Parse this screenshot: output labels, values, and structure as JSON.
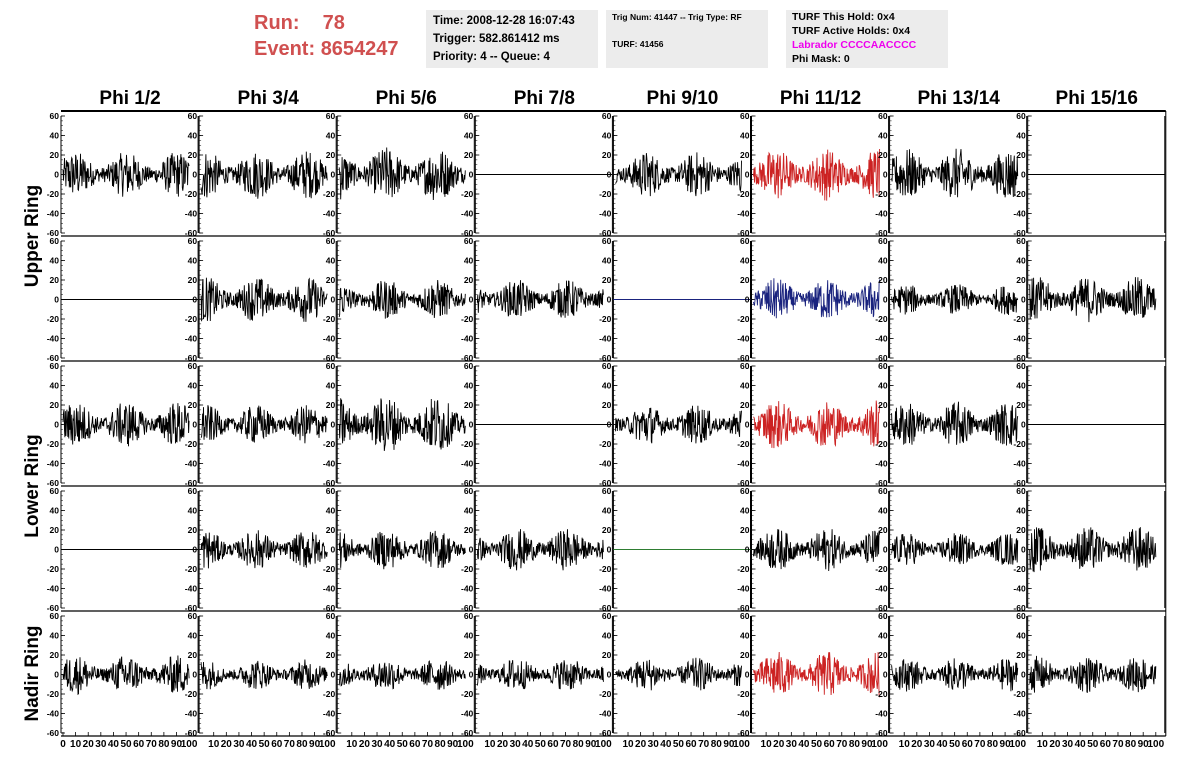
{
  "header": {
    "run_label": "Run:",
    "run_value": "78",
    "event_label": "Event:",
    "event_value": "8654247",
    "run_color": "#d05050"
  },
  "info_time": {
    "time": "Time: 2008-12-28 16:07:43",
    "trigger": "Trigger: 582.861412 ms",
    "priority": "Priority: 4 -- Queue: 4"
  },
  "info_trig": {
    "trig_line": "Trig Num: 41447 -- Trig Type: RF",
    "turf_line": "TURF: 41456"
  },
  "info_turf": {
    "this_hold": "TURF This Hold: 0x4",
    "active_holds": "TURF Active Holds: 0x4",
    "labrador": "Labrador CCCCAACCCC",
    "phi_mask": "Phi Mask: 0",
    "labrador_color": "#ee00ee"
  },
  "chart_data": {
    "type": "line",
    "columns": [
      "Phi 1/2",
      "Phi 3/4",
      "Phi 5/6",
      "Phi 7/8",
      "Phi 9/10",
      "Phi 11/12",
      "Phi 13/14",
      "Phi 15/16"
    ],
    "row_groups": [
      {
        "name": "Upper Ring",
        "rows": [
          0,
          1
        ]
      },
      {
        "name": "Lower Ring",
        "rows": [
          2,
          3
        ]
      },
      {
        "name": "Nadir Ring",
        "rows": [
          4
        ]
      }
    ],
    "ylim": [
      -60,
      60
    ],
    "y_ticks": [
      60,
      40,
      20,
      0,
      -20,
      -40,
      -60
    ],
    "xlim": [
      0,
      100
    ],
    "x_ticks": [
      0,
      10,
      20,
      30,
      40,
      50,
      60,
      70,
      80,
      90,
      100
    ],
    "panels": [
      [
        {
          "state": "active",
          "amp": 15,
          "color": "#000000"
        },
        {
          "state": "active",
          "amp": 16,
          "color": "#000000"
        },
        {
          "state": "active",
          "amp": 18,
          "color": "#000000"
        },
        {
          "state": "flat",
          "amp": 0,
          "color": "#000000"
        },
        {
          "state": "active",
          "amp": 15,
          "color": "#000000"
        },
        {
          "state": "active",
          "amp": 17,
          "color": "#cc2222"
        },
        {
          "state": "active",
          "amp": 17,
          "color": "#000000"
        },
        {
          "state": "flat",
          "amp": 0,
          "color": "#000000"
        }
      ],
      [
        {
          "state": "flat",
          "amp": 0,
          "color": "#000000"
        },
        {
          "state": "active",
          "amp": 15,
          "color": "#000000"
        },
        {
          "state": "active",
          "amp": 13,
          "color": "#000000"
        },
        {
          "state": "active",
          "amp": 13,
          "color": "#000000"
        },
        {
          "state": "flat",
          "amp": 0,
          "color": "#1a237e"
        },
        {
          "state": "active",
          "amp": 14,
          "color": "#1a237e"
        },
        {
          "state": "active",
          "amp": 10,
          "color": "#000000"
        },
        {
          "state": "active",
          "amp": 15,
          "color": "#000000"
        }
      ],
      [
        {
          "state": "active",
          "amp": 15,
          "color": "#000000"
        },
        {
          "state": "active",
          "amp": 13,
          "color": "#000000"
        },
        {
          "state": "active",
          "amp": 19,
          "color": "#000000"
        },
        {
          "state": "flat",
          "amp": 0,
          "color": "#000000"
        },
        {
          "state": "active",
          "amp": 13,
          "color": "#000000"
        },
        {
          "state": "active",
          "amp": 16,
          "color": "#cc2222"
        },
        {
          "state": "active",
          "amp": 15,
          "color": "#000000"
        },
        {
          "state": "flat",
          "amp": 0,
          "color": "#000000"
        }
      ],
      [
        {
          "state": "flat",
          "amp": 0,
          "color": "#000000"
        },
        {
          "state": "active",
          "amp": 13,
          "color": "#000000"
        },
        {
          "state": "active",
          "amp": 13,
          "color": "#000000"
        },
        {
          "state": "active",
          "amp": 14,
          "color": "#000000"
        },
        {
          "state": "flat",
          "amp": 0,
          "color": "#2e7d32"
        },
        {
          "state": "active",
          "amp": 14,
          "color": "#000000"
        },
        {
          "state": "active",
          "amp": 11,
          "color": "#000000"
        },
        {
          "state": "active",
          "amp": 15,
          "color": "#000000"
        }
      ],
      [
        {
          "state": "active",
          "amp": 13,
          "color": "#000000"
        },
        {
          "state": "active",
          "amp": 10,
          "color": "#000000"
        },
        {
          "state": "active",
          "amp": 11,
          "color": "#000000"
        },
        {
          "state": "active",
          "amp": 11,
          "color": "#000000"
        },
        {
          "state": "active",
          "amp": 11,
          "color": "#000000"
        },
        {
          "state": "active",
          "amp": 15,
          "color": "#cc2222"
        },
        {
          "state": "active",
          "amp": 11,
          "color": "#000000"
        },
        {
          "state": "active",
          "amp": 12,
          "color": "#000000"
        }
      ]
    ]
  }
}
